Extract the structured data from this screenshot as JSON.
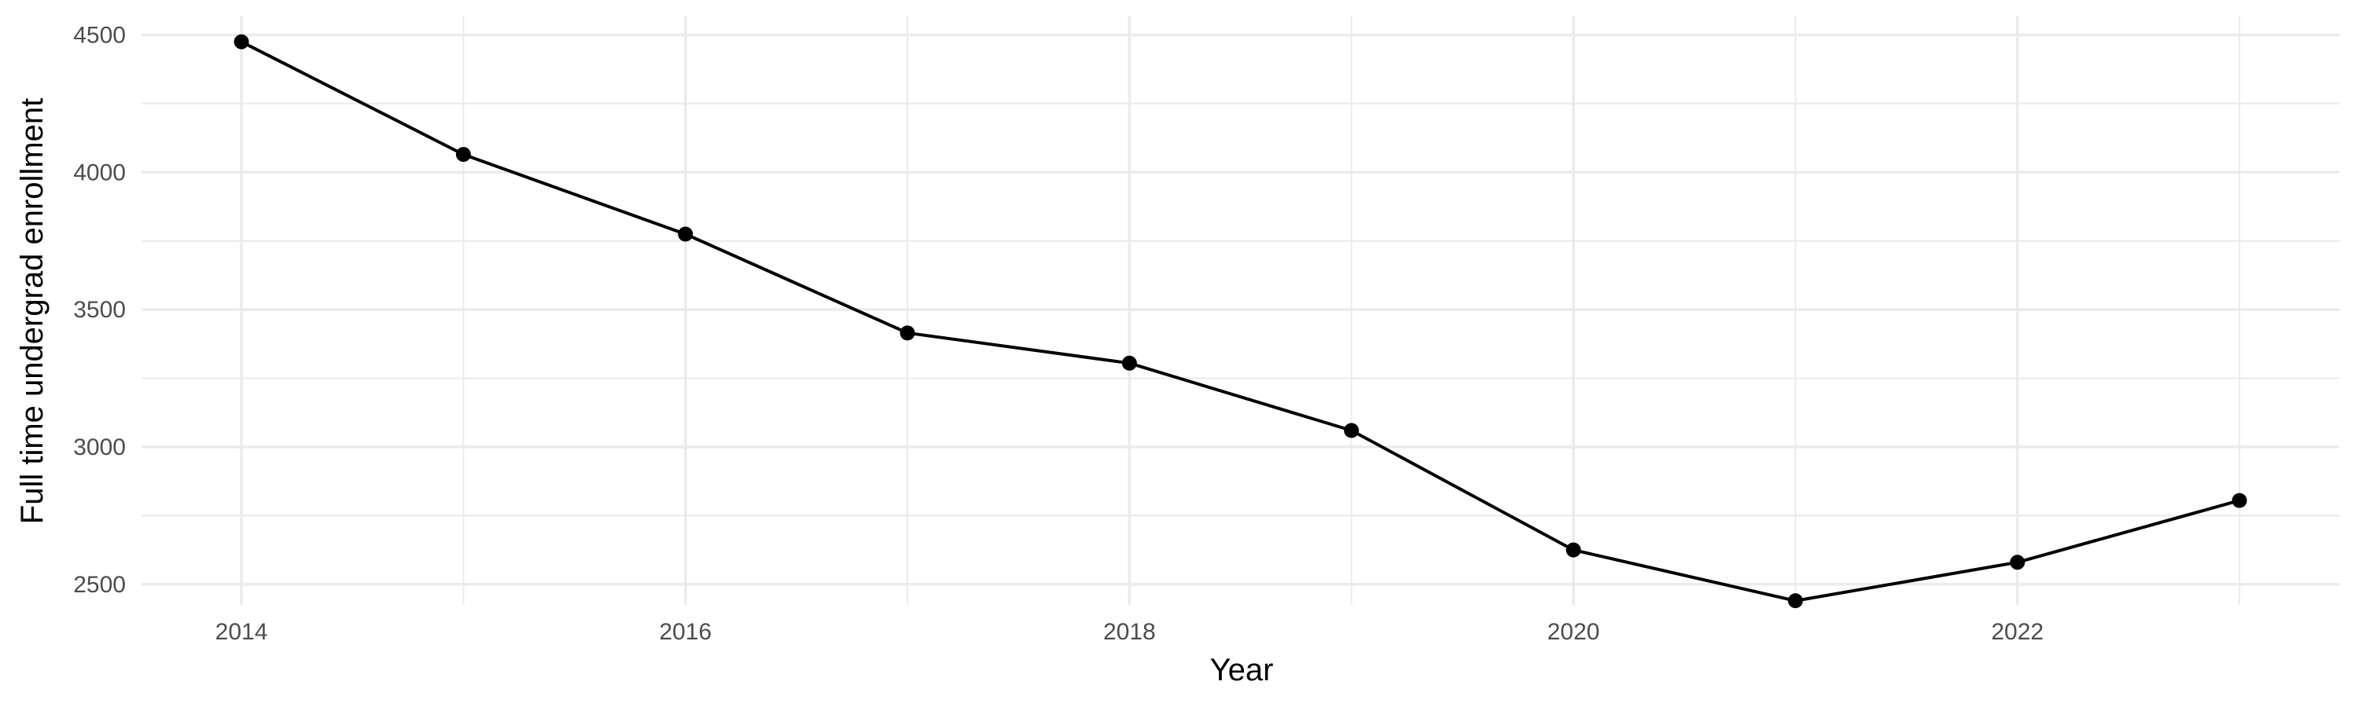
{
  "chart_data": {
    "type": "line",
    "title": "",
    "xlabel": "Year",
    "ylabel": "Full time undergrad enrollment",
    "x": [
      2014,
      2015,
      2016,
      2017,
      2018,
      2019,
      2020,
      2021,
      2022,
      2023
    ],
    "series": [
      {
        "values": [
          4475,
          4065,
          3775,
          3415,
          3305,
          3060,
          2625,
          2440,
          2580,
          2805
        ]
      }
    ],
    "xlim": [
      2013.55,
      2023.45
    ],
    "ylim": [
      2425,
      4570
    ],
    "x_ticks": [
      2014,
      2016,
      2018,
      2020,
      2022
    ],
    "y_ticks": [
      2500,
      3000,
      3500,
      4000,
      4500
    ],
    "x_tick_labels": [
      "2014",
      "2016",
      "2018",
      "2020",
      "2022"
    ],
    "y_tick_labels": [
      "2500",
      "3000",
      "3500",
      "4000",
      "4500"
    ],
    "grid": true,
    "line_color": "#000000",
    "grid_color": "#ebebeb",
    "legend": "none"
  }
}
